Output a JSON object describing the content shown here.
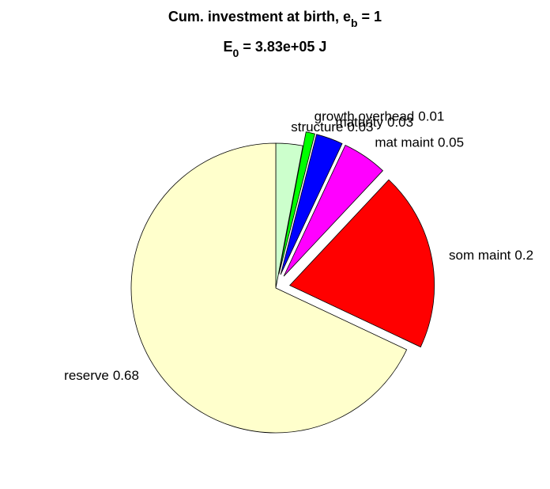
{
  "chart_data": {
    "type": "pie",
    "title": [
      "Cum. investment at birth, e",
      "b",
      " = 1"
    ],
    "subtitle": [
      "E",
      "0",
      " = 3.83e+05 J"
    ],
    "categories": [
      "structure",
      "growth overhead",
      "maturity",
      "mat maint",
      "som maint",
      "reserve"
    ],
    "values": [
      0.03,
      0.01,
      0.03,
      0.05,
      0.2,
      0.68
    ],
    "colors": [
      "#ccffcc",
      "#00ff00",
      "#0000ff",
      "#ff00ff",
      "#ff0000",
      "#ffffcc"
    ],
    "explode": [
      0,
      1,
      1,
      1,
      1,
      0
    ]
  }
}
